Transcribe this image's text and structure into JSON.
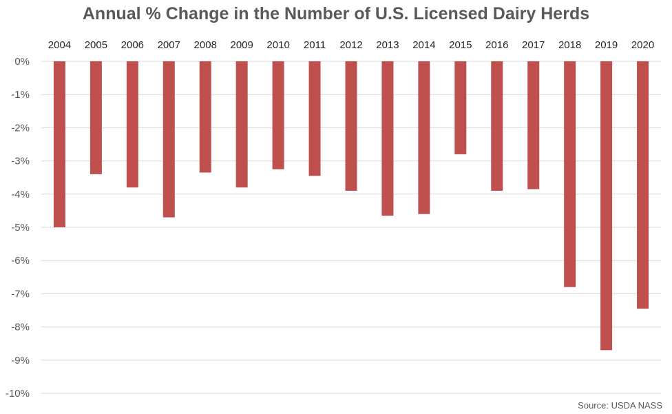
{
  "chart_data": {
    "type": "bar",
    "title": "Annual % Change in the Number of U.S. Licensed Dairy Herds",
    "source": "Source: USDA NASS",
    "xlabel": "",
    "ylabel": "",
    "categories": [
      "2004",
      "2005",
      "2006",
      "2007",
      "2008",
      "2009",
      "2010",
      "2011",
      "2012",
      "2013",
      "2014",
      "2015",
      "2016",
      "2017",
      "2018",
      "2019",
      "2020"
    ],
    "values": [
      -5.0,
      -3.4,
      -3.8,
      -4.7,
      -3.35,
      -3.8,
      -3.25,
      -3.45,
      -3.9,
      -4.65,
      -4.6,
      -2.8,
      -3.9,
      -3.85,
      -6.8,
      -8.7,
      -7.45
    ],
    "ylim": [
      -10,
      0
    ],
    "yticks": [
      0,
      -1,
      -2,
      -3,
      -4,
      -5,
      -6,
      -7,
      -8,
      -9,
      -10
    ],
    "ytick_labels": [
      "0%",
      "-1%",
      "-2%",
      "-3%",
      "-4%",
      "-5%",
      "-6%",
      "-7%",
      "-8%",
      "-9%",
      "-10%"
    ],
    "x_axis_position": "top",
    "grid": true,
    "legend": "none",
    "colors": {
      "bar": "#c0504d",
      "grid": "#d9d9d9",
      "text": "#595959"
    }
  }
}
